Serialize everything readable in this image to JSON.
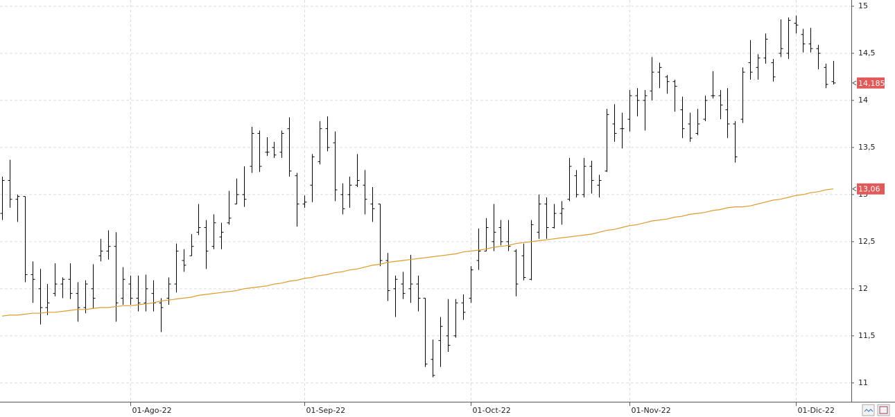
{
  "chart_data": {
    "type": "ohlc",
    "categories": [
      null,
      null,
      null,
      null,
      null,
      null,
      null,
      null,
      null,
      null,
      null,
      null,
      null,
      null,
      null,
      null,
      null,
      "01-Ago-22",
      null,
      null,
      null,
      null,
      null,
      null,
      null,
      null,
      null,
      null,
      null,
      null,
      null,
      null,
      null,
      null,
      null,
      null,
      null,
      null,
      null,
      null,
      "01-Sep-22",
      null,
      null,
      null,
      null,
      null,
      null,
      null,
      null,
      null,
      null,
      null,
      null,
      null,
      null,
      null,
      null,
      null,
      null,
      null,
      null,
      null,
      "01-Oct-22",
      null,
      null,
      null,
      null,
      null,
      null,
      null,
      null,
      null,
      null,
      null,
      null,
      null,
      null,
      null,
      null,
      null,
      null,
      null,
      null,
      "01-Nov-22",
      null,
      null,
      null,
      null,
      null,
      null,
      null,
      null,
      null,
      null,
      null,
      null,
      null,
      null,
      null,
      null,
      null,
      null,
      null,
      null,
      null,
      "01-Dic-22",
      null,
      null,
      null,
      null,
      null
    ],
    "series": [
      {
        "type": "ohlc",
        "color": "#000000",
        "values": [
          [
            12.8,
            13.19,
            12.73,
            13.15
          ],
          [
            13.15,
            13.37,
            12.86,
            12.95
          ],
          [
            12.95,
            13.0,
            12.71,
            12.98
          ],
          [
            12.98,
            12.98,
            12.07,
            12.15
          ],
          [
            12.15,
            12.29,
            11.85,
            12.1
          ],
          [
            12.0,
            12.21,
            11.62,
            11.8
          ],
          [
            11.8,
            12.05,
            11.72,
            11.85
          ],
          [
            11.95,
            12.27,
            11.92,
            12.05
          ],
          [
            12.05,
            12.12,
            11.9,
            12.1
          ],
          [
            12.1,
            12.27,
            11.89,
            11.95
          ],
          [
            11.95,
            12.07,
            11.65,
            11.8
          ],
          [
            11.8,
            12.09,
            11.74,
            12.05
          ],
          [
            12.0,
            12.26,
            11.79,
            11.9
          ],
          [
            12.35,
            12.53,
            12.29,
            12.4
          ],
          [
            12.4,
            12.62,
            12.31,
            12.45
          ],
          [
            12.45,
            12.6,
            11.65,
            11.85
          ],
          [
            11.9,
            12.23,
            11.83,
            12.1
          ],
          [
            12.05,
            12.14,
            11.83,
            11.9
          ],
          [
            11.9,
            12.14,
            11.76,
            11.85
          ],
          [
            11.85,
            12.15,
            11.76,
            12.0
          ],
          [
            11.95,
            12.09,
            11.76,
            11.85
          ],
          [
            11.85,
            11.9,
            11.54,
            11.8
          ],
          [
            11.9,
            12.12,
            11.83,
            12.05
          ],
          [
            12.05,
            12.48,
            11.96,
            12.4
          ],
          [
            12.3,
            12.42,
            12.18,
            12.25
          ],
          [
            12.35,
            12.58,
            12.35,
            12.45
          ],
          [
            12.6,
            12.9,
            12.57,
            12.65
          ],
          [
            12.65,
            12.73,
            12.21,
            12.4
          ],
          [
            12.45,
            12.79,
            12.42,
            12.7
          ],
          [
            12.55,
            12.7,
            12.42,
            12.6
          ],
          [
            12.7,
            13.04,
            12.68,
            12.75
          ],
          [
            12.9,
            13.17,
            12.9,
            13.0
          ],
          [
            13.0,
            13.3,
            12.87,
            12.95
          ],
          [
            13.3,
            13.72,
            13.23,
            13.65
          ],
          [
            13.65,
            13.68,
            13.24,
            13.3
          ],
          [
            13.45,
            13.61,
            13.41,
            13.45
          ],
          [
            13.5,
            13.56,
            13.39,
            13.42
          ],
          [
            13.45,
            13.68,
            13.39,
            13.65
          ],
          [
            13.7,
            13.82,
            13.19,
            13.25
          ],
          [
            13.2,
            13.23,
            12.66,
            12.9
          ],
          [
            12.9,
            12.99,
            12.86,
            12.92
          ],
          [
            13.1,
            13.43,
            12.92,
            13.4
          ],
          [
            13.35,
            13.78,
            13.32,
            13.7
          ],
          [
            13.7,
            13.83,
            13.46,
            13.5
          ],
          [
            13.55,
            13.67,
            12.93,
            13.05
          ],
          [
            13.0,
            13.12,
            12.79,
            12.85
          ],
          [
            13.0,
            13.19,
            12.86,
            13.1
          ],
          [
            13.1,
            13.43,
            13.08,
            13.15
          ],
          [
            13.1,
            13.26,
            12.79,
            12.95
          ],
          [
            12.9,
            13.08,
            12.71,
            12.85
          ],
          [
            12.9,
            12.9,
            12.24,
            12.3
          ],
          [
            12.3,
            12.38,
            11.87,
            11.98
          ],
          [
            12.0,
            12.14,
            11.7,
            12.1
          ],
          [
            12.05,
            12.18,
            11.89,
            11.95
          ],
          [
            12.0,
            12.36,
            11.85,
            12.05
          ],
          [
            12.05,
            12.14,
            11.76,
            11.9
          ],
          [
            11.9,
            11.9,
            11.17,
            11.2
          ],
          [
            11.25,
            11.46,
            11.06,
            11.08
          ],
          [
            11.45,
            11.7,
            11.17,
            11.6
          ],
          [
            11.5,
            11.89,
            11.33,
            11.4
          ],
          [
            11.5,
            11.89,
            11.48,
            11.85
          ],
          [
            11.85,
            11.94,
            11.67,
            11.75
          ],
          [
            11.9,
            12.24,
            11.85,
            12.2
          ],
          [
            12.3,
            12.64,
            12.2,
            12.4
          ],
          [
            12.4,
            12.75,
            12.4,
            12.65
          ],
          [
            12.5,
            12.9,
            12.4,
            12.6
          ],
          [
            12.65,
            12.73,
            12.46,
            12.5
          ],
          [
            12.5,
            12.73,
            12.4,
            12.45
          ],
          [
            12.4,
            12.42,
            11.92,
            12.05
          ],
          [
            12.35,
            12.48,
            12.09,
            12.12
          ],
          [
            12.1,
            12.73,
            12.09,
            12.68
          ],
          [
            12.6,
            13.0,
            12.53,
            12.9
          ],
          [
            12.9,
            12.97,
            12.53,
            12.65
          ],
          [
            12.65,
            12.9,
            12.64,
            12.8
          ],
          [
            12.8,
            12.93,
            12.68,
            12.85
          ],
          [
            12.95,
            13.39,
            12.93,
            13.3
          ],
          [
            13.2,
            13.26,
            12.97,
            13.0
          ],
          [
            13.0,
            13.39,
            12.97,
            13.3
          ],
          [
            13.3,
            13.36,
            13.01,
            13.15
          ],
          [
            13.1,
            13.21,
            12.97,
            13.15
          ],
          [
            13.25,
            13.91,
            13.24,
            13.85
          ],
          [
            13.75,
            13.96,
            13.56,
            13.65
          ],
          [
            13.7,
            13.87,
            13.49,
            13.7
          ],
          [
            13.8,
            14.11,
            13.67,
            14.05
          ],
          [
            14.05,
            14.13,
            13.83,
            14.0
          ],
          [
            14.0,
            14.11,
            13.68,
            14.05
          ],
          [
            14.1,
            14.46,
            14.0,
            14.3
          ],
          [
            14.3,
            14.4,
            14.13,
            14.35
          ],
          [
            14.25,
            14.27,
            14.07,
            14.2
          ],
          [
            14.2,
            14.22,
            13.88,
            14.15
          ],
          [
            13.9,
            14.04,
            13.6,
            13.7
          ],
          [
            13.75,
            13.87,
            13.56,
            13.6
          ],
          [
            13.65,
            13.91,
            13.63,
            13.75
          ],
          [
            13.8,
            14.05,
            13.78,
            14.0
          ],
          [
            14.05,
            14.31,
            14.02,
            14.05
          ],
          [
            14.05,
            14.11,
            13.8,
            13.95
          ],
          [
            13.9,
            14.13,
            13.6,
            13.75
          ],
          [
            13.75,
            13.78,
            13.34,
            13.4
          ],
          [
            13.8,
            14.35,
            13.76,
            14.3
          ],
          [
            14.4,
            14.64,
            14.22,
            14.3
          ],
          [
            14.35,
            14.49,
            14.22,
            14.45
          ],
          [
            14.45,
            14.71,
            14.39,
            14.65
          ],
          [
            14.4,
            14.44,
            14.2,
            14.25
          ],
          [
            14.5,
            14.86,
            14.46,
            14.55
          ],
          [
            14.5,
            14.88,
            14.44,
            14.85
          ],
          [
            14.82,
            14.9,
            14.71,
            14.8
          ],
          [
            14.7,
            14.76,
            14.51,
            14.6
          ],
          [
            14.6,
            14.77,
            14.51,
            14.55
          ],
          [
            14.55,
            14.59,
            14.33,
            14.5
          ],
          [
            14.35,
            14.39,
            14.13,
            14.17
          ],
          [
            14.2,
            14.42,
            14.17,
            14.185
          ]
        ]
      },
      {
        "type": "line",
        "color": "#e09a2a",
        "values": [
          11.71,
          11.72,
          11.72,
          11.73,
          11.74,
          11.74,
          11.75,
          11.75,
          11.76,
          11.77,
          11.78,
          11.78,
          11.79,
          11.8,
          11.8,
          11.81,
          11.82,
          11.82,
          11.83,
          11.84,
          11.85,
          11.87,
          11.88,
          11.89,
          11.9,
          11.91,
          11.93,
          11.94,
          11.95,
          11.96,
          11.97,
          11.98,
          12.0,
          12.01,
          12.02,
          12.03,
          12.05,
          12.06,
          12.08,
          12.09,
          12.11,
          12.12,
          12.14,
          12.15,
          12.17,
          12.18,
          12.2,
          12.21,
          12.23,
          12.25,
          12.26,
          12.28,
          12.29,
          12.3,
          12.31,
          12.32,
          12.33,
          12.34,
          12.35,
          12.36,
          12.37,
          12.39,
          12.4,
          12.41,
          12.42,
          12.44,
          12.45,
          12.46,
          12.48,
          12.49,
          12.5,
          12.51,
          12.52,
          12.53,
          12.54,
          12.55,
          12.56,
          12.57,
          12.58,
          12.6,
          12.62,
          12.63,
          12.65,
          12.67,
          12.68,
          12.7,
          12.72,
          12.73,
          12.74,
          12.76,
          12.77,
          12.79,
          12.8,
          12.81,
          12.83,
          12.84,
          12.86,
          12.87,
          12.87,
          12.88,
          12.9,
          12.92,
          12.94,
          12.95,
          12.97,
          12.99,
          13.0,
          13.02,
          13.03,
          13.05,
          13.06
        ]
      }
    ],
    "price_tags": [
      {
        "value": 14.185,
        "label": "14,185",
        "color": "#e05a5a"
      },
      {
        "value": 13.06,
        "label": "13,06",
        "color": "#e05a5a"
      }
    ],
    "ylim": [
      10.8,
      15.066
    ],
    "yticks": [
      {
        "value": 11,
        "label": "11"
      },
      {
        "value": 11.5,
        "label": "11,5"
      },
      {
        "value": 12,
        "label": "12"
      },
      {
        "value": 12.5,
        "label": "12,5"
      },
      {
        "value": 13,
        "label": "13"
      },
      {
        "value": 13.5,
        "label": "13,5"
      },
      {
        "value": 14,
        "label": "14"
      },
      {
        "value": 14.5,
        "label": "14,5"
      },
      {
        "value": 15,
        "label": "15"
      }
    ],
    "grid": true
  }
}
